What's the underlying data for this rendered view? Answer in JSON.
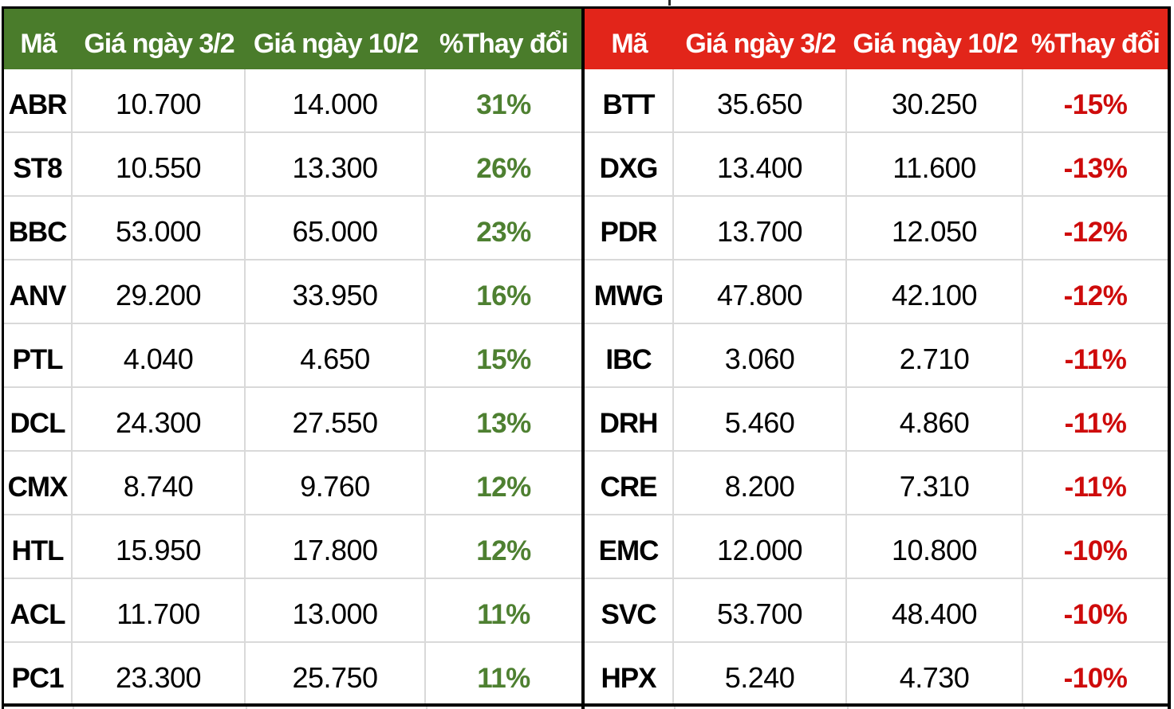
{
  "chart_data": [
    {
      "type": "table",
      "role": "top-gainers",
      "header_bg": "#4a7c2b",
      "change_color": "#4e8031",
      "columns": [
        "Mã",
        "Giá ngày 3/2",
        "Giá ngày 10/2",
        "%Thay đổi"
      ],
      "rows": [
        {
          "code": "ABR",
          "price_3_2": "10.700",
          "price_10_2": "14.000",
          "change": "31%"
        },
        {
          "code": "ST8",
          "price_3_2": "10.550",
          "price_10_2": "13.300",
          "change": "26%"
        },
        {
          "code": "BBC",
          "price_3_2": "53.000",
          "price_10_2": "65.000",
          "change": "23%"
        },
        {
          "code": "ANV",
          "price_3_2": "29.200",
          "price_10_2": "33.950",
          "change": "16%"
        },
        {
          "code": "PTL",
          "price_3_2": "4.040",
          "price_10_2": "4.650",
          "change": "15%"
        },
        {
          "code": "DCL",
          "price_3_2": "24.300",
          "price_10_2": "27.550",
          "change": "13%"
        },
        {
          "code": "CMX",
          "price_3_2": "8.740",
          "price_10_2": "9.760",
          "change": "12%"
        },
        {
          "code": "HTL",
          "price_3_2": "15.950",
          "price_10_2": "17.800",
          "change": "12%"
        },
        {
          "code": "ACL",
          "price_3_2": "11.700",
          "price_10_2": "13.000",
          "change": "11%"
        },
        {
          "code": "PC1",
          "price_3_2": "23.300",
          "price_10_2": "25.750",
          "change": "11%"
        }
      ]
    },
    {
      "type": "table",
      "role": "top-losers",
      "header_bg": "#e2251a",
      "change_color": "#ce0b0b",
      "columns": [
        "Mã",
        "Giá ngày 3/2",
        "Giá ngày 10/2",
        "%Thay đổi"
      ],
      "rows": [
        {
          "code": "BTT",
          "price_3_2": "35.650",
          "price_10_2": "30.250",
          "change": "-15%"
        },
        {
          "code": "DXG",
          "price_3_2": "13.400",
          "price_10_2": "11.600",
          "change": "-13%"
        },
        {
          "code": "PDR",
          "price_3_2": "13.700",
          "price_10_2": "12.050",
          "change": "-12%"
        },
        {
          "code": "MWG",
          "price_3_2": "47.800",
          "price_10_2": "42.100",
          "change": "-12%"
        },
        {
          "code": "IBC",
          "price_3_2": "3.060",
          "price_10_2": "2.710",
          "change": "-11%"
        },
        {
          "code": "DRH",
          "price_3_2": "5.460",
          "price_10_2": "4.860",
          "change": "-11%"
        },
        {
          "code": "CRE",
          "price_3_2": "8.200",
          "price_10_2": "7.310",
          "change": "-11%"
        },
        {
          "code": "EMC",
          "price_3_2": "12.000",
          "price_10_2": "10.800",
          "change": "-10%"
        },
        {
          "code": "SVC",
          "price_3_2": "53.700",
          "price_10_2": "48.400",
          "change": "-10%"
        },
        {
          "code": "HPX",
          "price_3_2": "5.240",
          "price_10_2": "4.730",
          "change": "-10%"
        }
      ]
    }
  ]
}
